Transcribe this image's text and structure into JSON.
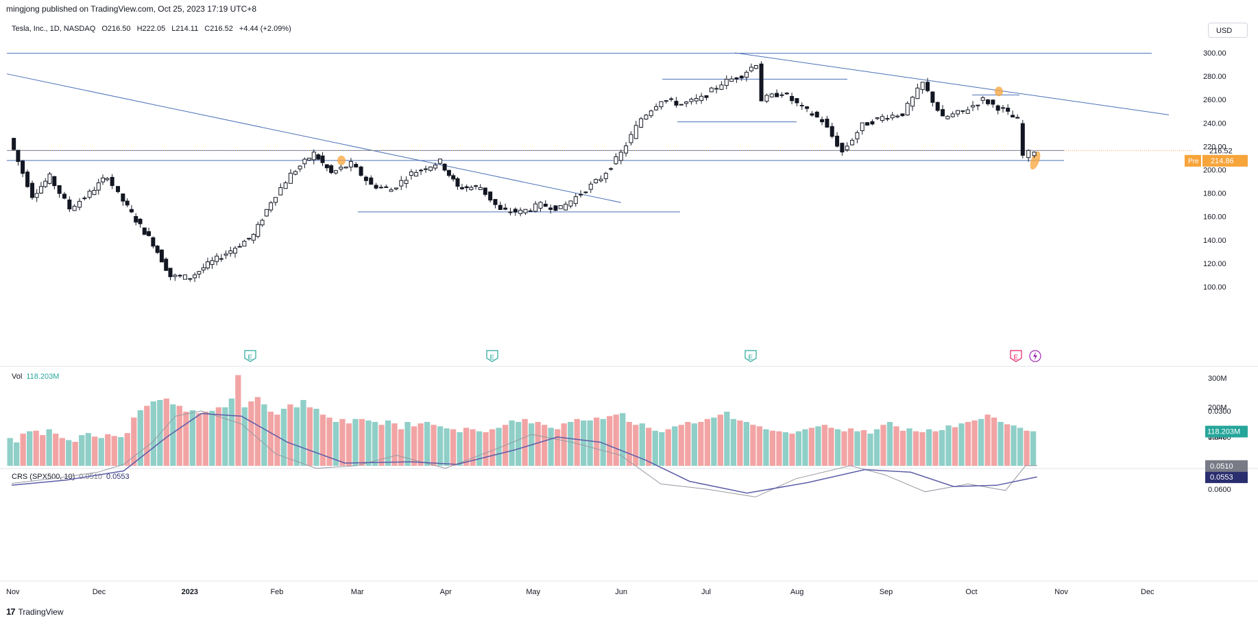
{
  "header": {
    "published": "mingjong published on TradingView.com, Oct 25, 2023 17:19 UTC+8"
  },
  "legend": {
    "symbol": "Tesla, Inc., 1D, NASDAQ",
    "open": "O216.50",
    "high": "H222.05",
    "low": "L214.11",
    "close": "C216.52",
    "change": "+4.44 (+2.09%)"
  },
  "currency_button": "USD",
  "volume_legend": {
    "label": "Vol",
    "value": "118.203M"
  },
  "crs_legend": {
    "label": "CRS (SPX500, 10)",
    "value_a": "0.0510",
    "value_b": "0.0553"
  },
  "footer": {
    "brand": "TradingView"
  },
  "colors": {
    "up": "#26a69a",
    "down": "#ef5350",
    "line": "#4a6fb8",
    "highlight": "#f7a43a",
    "crs_slow": "#5c5ca8",
    "crs_fast": "#9598a1"
  },
  "chart_data": [
    {
      "type": "candlestick",
      "price_axis": {
        "ticks": [
          "300.00",
          "280.00",
          "260.00",
          "240.00",
          "220.00",
          "200.00",
          "180.00",
          "160.00",
          "140.00",
          "120.00",
          "100.00"
        ],
        "last_label": "216.52",
        "pre_label": "Pre",
        "pre_value": "214.86"
      },
      "x_axis": {
        "labels": [
          "Nov",
          "Dec",
          "2023",
          "Feb",
          "Mar",
          "Apr",
          "May",
          "Jun",
          "Jul",
          "Aug",
          "Sep",
          "Oct",
          "Nov",
          "Dec"
        ]
      },
      "close_series": [
        {
          "d": "2022-11-01",
          "c": 227
        },
        {
          "d": "2022-11-04",
          "c": 207
        },
        {
          "d": "2022-11-09",
          "c": 178
        },
        {
          "d": "2022-11-15",
          "c": 194
        },
        {
          "d": "2022-11-22",
          "c": 167
        },
        {
          "d": "2022-11-29",
          "c": 180
        },
        {
          "d": "2022-12-05",
          "c": 195
        },
        {
          "d": "2022-12-09",
          "c": 179
        },
        {
          "d": "2022-12-15",
          "c": 157
        },
        {
          "d": "2022-12-21",
          "c": 137
        },
        {
          "d": "2022-12-27",
          "c": 109
        },
        {
          "d": "2023-01-03",
          "c": 108
        },
        {
          "d": "2023-01-09",
          "c": 119
        },
        {
          "d": "2023-01-17",
          "c": 131
        },
        {
          "d": "2023-01-25",
          "c": 144
        },
        {
          "d": "2023-01-31",
          "c": 173
        },
        {
          "d": "2023-02-07",
          "c": 196
        },
        {
          "d": "2023-02-15",
          "c": 214
        },
        {
          "d": "2023-02-21",
          "c": 197
        },
        {
          "d": "2023-02-28",
          "c": 205
        },
        {
          "d": "2023-03-07",
          "c": 187
        },
        {
          "d": "2023-03-14",
          "c": 183
        },
        {
          "d": "2023-03-21",
          "c": 197
        },
        {
          "d": "2023-03-31",
          "c": 207
        },
        {
          "d": "2023-04-06",
          "c": 185
        },
        {
          "d": "2023-04-14",
          "c": 185
        },
        {
          "d": "2023-04-21",
          "c": 165
        },
        {
          "d": "2023-04-28",
          "c": 164
        },
        {
          "d": "2023-05-05",
          "c": 170
        },
        {
          "d": "2023-05-12",
          "c": 167
        },
        {
          "d": "2023-05-19",
          "c": 180
        },
        {
          "d": "2023-05-26",
          "c": 193
        },
        {
          "d": "2023-06-02",
          "c": 214
        },
        {
          "d": "2023-06-09",
          "c": 244
        },
        {
          "d": "2023-06-16",
          "c": 260
        },
        {
          "d": "2023-06-23",
          "c": 256
        },
        {
          "d": "2023-06-30",
          "c": 261
        },
        {
          "d": "2023-07-07",
          "c": 274
        },
        {
          "d": "2023-07-14",
          "c": 281
        },
        {
          "d": "2023-07-19",
          "c": 291
        },
        {
          "d": "2023-07-21",
          "c": 260
        },
        {
          "d": "2023-07-28",
          "c": 266
        },
        {
          "d": "2023-08-04",
          "c": 253
        },
        {
          "d": "2023-08-11",
          "c": 242
        },
        {
          "d": "2023-08-18",
          "c": 215
        },
        {
          "d": "2023-08-25",
          "c": 238
        },
        {
          "d": "2023-09-01",
          "c": 245
        },
        {
          "d": "2023-09-08",
          "c": 248
        },
        {
          "d": "2023-09-15",
          "c": 274
        },
        {
          "d": "2023-09-22",
          "c": 244
        },
        {
          "d": "2023-09-29",
          "c": 250
        },
        {
          "d": "2023-10-06",
          "c": 260
        },
        {
          "d": "2023-10-13",
          "c": 251
        },
        {
          "d": "2023-10-18",
          "c": 242
        },
        {
          "d": "2023-10-20",
          "c": 212
        },
        {
          "d": "2023-10-24",
          "c": 216.52
        }
      ]
    },
    {
      "type": "bar",
      "name": "Vol",
      "axis_ticks": [
        "300M",
        "200M",
        "100M"
      ],
      "last_label": "118.203M",
      "values": [
        95,
        80,
        110,
        118,
        120,
        105,
        125,
        110,
        95,
        88,
        82,
        105,
        112,
        100,
        95,
        108,
        102,
        98,
        112,
        165,
        190,
        205,
        220,
        225,
        230,
        210,
        205,
        185,
        190,
        180,
        185,
        188,
        200,
        200,
        230,
        310,
        200,
        220,
        235,
        210,
        185,
        175,
        195,
        210,
        200,
        225,
        200,
        195,
        175,
        165,
        150,
        160,
        145,
        160,
        160,
        155,
        150,
        140,
        155,
        145,
        125,
        150,
        135,
        145,
        150,
        140,
        135,
        128,
        125,
        115,
        130,
        125,
        118,
        115,
        125,
        130,
        140,
        155,
        150,
        160,
        145,
        150,
        140,
        130,
        125,
        145,
        150,
        160,
        155,
        155,
        165,
        160,
        170,
        175,
        180,
        150,
        140,
        145,
        130,
        120,
        115,
        125,
        135,
        140,
        150,
        145,
        150,
        160,
        165,
        175,
        185,
        160,
        155,
        150,
        140,
        135,
        125,
        120,
        118,
        115,
        110,
        118,
        125,
        130,
        135,
        140,
        130,
        125,
        118,
        128,
        118,
        122,
        110,
        125,
        140,
        150,
        135,
        120,
        128,
        118,
        115,
        125,
        118,
        122,
        138,
        132,
        145,
        150,
        155,
        160,
        175,
        165,
        150,
        142,
        138,
        130,
        120,
        118
      ]
    },
    {
      "type": "line",
      "name": "CRS (SPX500, 10)",
      "axis_ticks": [
        "0.0600",
        "0.0500",
        "0.0400",
        "0.0300"
      ],
      "labels": [
        "0.0553",
        "0.0510"
      ],
      "fast": [
        {
          "d": "2022-11-01",
          "v": 0.0578
        },
        {
          "d": "2022-11-15",
          "v": 0.056
        },
        {
          "d": "2022-12-01",
          "v": 0.0535
        },
        {
          "d": "2022-12-10",
          "v": 0.0505
        },
        {
          "d": "2022-12-20",
          "v": 0.042
        },
        {
          "d": "2022-12-28",
          "v": 0.032
        },
        {
          "d": "2023-01-06",
          "v": 0.03
        },
        {
          "d": "2023-01-20",
          "v": 0.035
        },
        {
          "d": "2023-02-01",
          "v": 0.0465
        },
        {
          "d": "2023-02-15",
          "v": 0.052
        },
        {
          "d": "2023-03-01",
          "v": 0.051
        },
        {
          "d": "2023-03-15",
          "v": 0.047
        },
        {
          "d": "2023-04-01",
          "v": 0.052
        },
        {
          "d": "2023-04-20",
          "v": 0.044
        },
        {
          "d": "2023-05-01",
          "v": 0.039
        },
        {
          "d": "2023-05-15",
          "v": 0.042
        },
        {
          "d": "2023-06-01",
          "v": 0.047
        },
        {
          "d": "2023-06-15",
          "v": 0.058
        },
        {
          "d": "2023-07-01",
          "v": 0.06
        },
        {
          "d": "2023-07-18",
          "v": 0.063
        },
        {
          "d": "2023-08-01",
          "v": 0.056
        },
        {
          "d": "2023-08-20",
          "v": 0.051
        },
        {
          "d": "2023-09-01",
          "v": 0.0545
        },
        {
          "d": "2023-09-15",
          "v": 0.061
        },
        {
          "d": "2023-09-30",
          "v": 0.058
        },
        {
          "d": "2023-10-13",
          "v": 0.0605
        },
        {
          "d": "2023-10-20",
          "v": 0.051
        },
        {
          "d": "2023-10-24",
          "v": 0.051
        }
      ],
      "slow": [
        {
          "d": "2022-11-01",
          "v": 0.0585
        },
        {
          "d": "2022-11-20",
          "v": 0.0565
        },
        {
          "d": "2022-12-10",
          "v": 0.053
        },
        {
          "d": "2022-12-25",
          "v": 0.04
        },
        {
          "d": "2023-01-06",
          "v": 0.031
        },
        {
          "d": "2023-01-20",
          "v": 0.032
        },
        {
          "d": "2023-02-05",
          "v": 0.042
        },
        {
          "d": "2023-02-25",
          "v": 0.05
        },
        {
          "d": "2023-03-20",
          "v": 0.0495
        },
        {
          "d": "2023-04-05",
          "v": 0.0505
        },
        {
          "d": "2023-04-25",
          "v": 0.045
        },
        {
          "d": "2023-05-10",
          "v": 0.04
        },
        {
          "d": "2023-05-25",
          "v": 0.042
        },
        {
          "d": "2023-06-10",
          "v": 0.049
        },
        {
          "d": "2023-06-25",
          "v": 0.057
        },
        {
          "d": "2023-07-15",
          "v": 0.0615
        },
        {
          "d": "2023-08-05",
          "v": 0.0575
        },
        {
          "d": "2023-08-25",
          "v": 0.0525
        },
        {
          "d": "2023-09-10",
          "v": 0.0535
        },
        {
          "d": "2023-09-25",
          "v": 0.059
        },
        {
          "d": "2023-10-10",
          "v": 0.0585
        },
        {
          "d": "2023-10-24",
          "v": 0.0553
        }
      ]
    }
  ]
}
